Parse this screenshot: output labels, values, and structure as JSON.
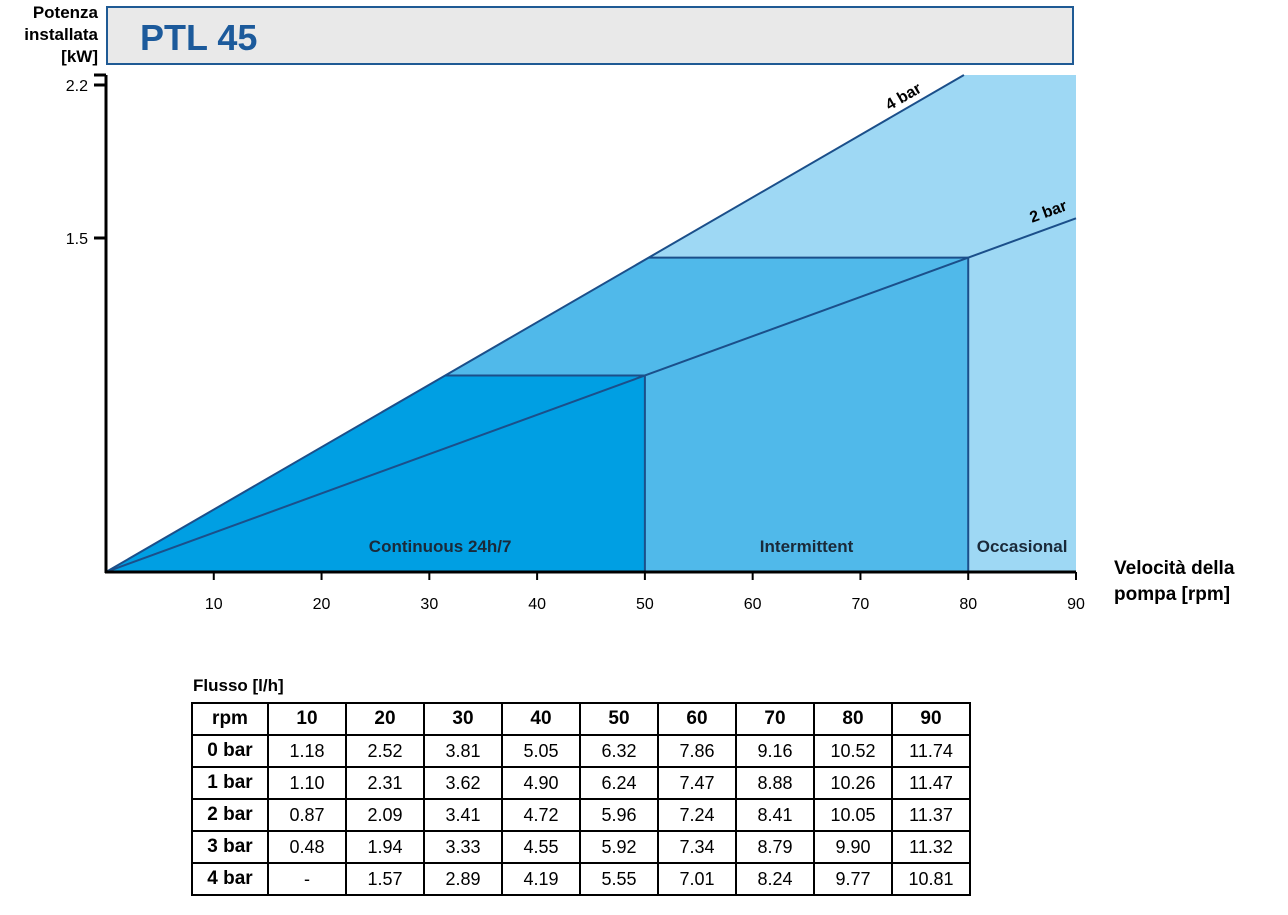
{
  "header": {
    "ylabel_lines": [
      "Potenza",
      "installata",
      "[kW]"
    ],
    "title": "PTL 45"
  },
  "xlabel_lines": [
    "Velocità della",
    "pompa [rpm]"
  ],
  "colors": {
    "continuous": "#009fe3",
    "intermittent": "#50b9ea",
    "occasional": "#9ed8f4",
    "lines": "#1b4f8a",
    "title": "#1c5a9b",
    "title_bg": "#e9e9e9"
  },
  "chart_data": {
    "type": "area",
    "title": "PTL 45",
    "xlabel": "Velocità della pompa [rpm]",
    "ylabel": "Potenza installata [kW]",
    "xlim": [
      0,
      90
    ],
    "x_ticks": [
      10,
      20,
      30,
      40,
      50,
      60,
      70,
      80,
      90
    ],
    "y_ticks": [
      1.5,
      2.2
    ],
    "grid": false,
    "series": [
      {
        "name": "4 bar",
        "x": [
          0,
          78
        ],
        "y": [
          0,
          2.2
        ]
      },
      {
        "name": "2 bar",
        "x": [
          0,
          90
        ],
        "y": [
          0,
          1.59
        ]
      }
    ],
    "regions": [
      {
        "name": "Continuous 24h/7",
        "x": [
          0,
          50
        ]
      },
      {
        "name": "Intermittent",
        "x": [
          50,
          80
        ]
      },
      {
        "name": "Occasional",
        "x": [
          80,
          90
        ]
      }
    ]
  },
  "table": {
    "caption": "Flusso [l/h]",
    "header": [
      "rpm",
      "10",
      "20",
      "30",
      "40",
      "50",
      "60",
      "70",
      "80",
      "90"
    ],
    "rows": [
      [
        "0 bar",
        "1.18",
        "2.52",
        "3.81",
        "5.05",
        "6.32",
        "7.86",
        "9.16",
        "10.52",
        "11.74"
      ],
      [
        "1 bar",
        "1.10",
        "2.31",
        "3.62",
        "4.90",
        "6.24",
        "7.47",
        "8.88",
        "10.26",
        "11.47"
      ],
      [
        "2 bar",
        "0.87",
        "2.09",
        "3.41",
        "4.72",
        "5.96",
        "7.24",
        "8.41",
        "10.05",
        "11.37"
      ],
      [
        "3 bar",
        "0.48",
        "1.94",
        "3.33",
        "4.55",
        "5.92",
        "7.34",
        "8.79",
        "9.90",
        "11.32"
      ],
      [
        "4 bar",
        "-",
        "1.57",
        "2.89",
        "4.19",
        "5.55",
        "7.01",
        "8.24",
        "9.77",
        "10.81"
      ]
    ]
  }
}
